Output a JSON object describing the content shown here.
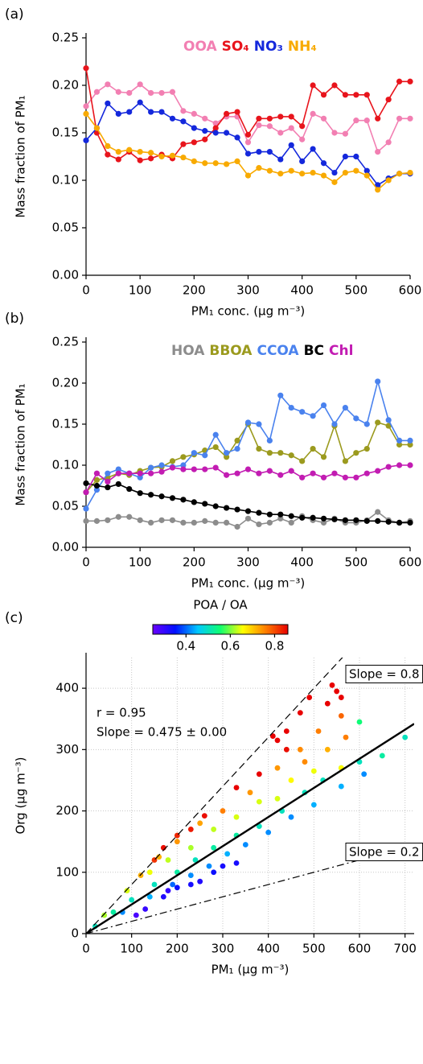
{
  "chart_data": [
    {
      "type": "line",
      "label": "(a)",
      "x_label": "PM₁ conc. (µg m⁻³)",
      "y_label": "Mass  fraction of PM₁",
      "x": [
        0,
        20,
        40,
        60,
        80,
        100,
        120,
        140,
        160,
        180,
        200,
        220,
        240,
        260,
        280,
        300,
        320,
        340,
        360,
        380,
        400,
        420,
        440,
        460,
        480,
        500,
        520,
        540,
        560,
        580,
        600
      ],
      "xlim": [
        0,
        600
      ],
      "xticks": [
        0,
        100,
        200,
        300,
        400,
        500,
        600
      ],
      "ylim": [
        0,
        0.25
      ],
      "yticks": [
        {
          "value": 0,
          "label": "0.00"
        },
        0.05,
        {
          "value": 0.1,
          "label": "0.10"
        },
        0.15,
        {
          "value": 0.2,
          "label": "0.20"
        },
        0.25
      ],
      "grid": false,
      "series": [
        {
          "name": "OOA",
          "color": "#f27fb2",
          "values": [
            0.178,
            0.193,
            0.201,
            0.193,
            0.192,
            0.201,
            0.192,
            0.192,
            0.193,
            0.173,
            0.17,
            0.165,
            0.16,
            0.167,
            0.167,
            0.14,
            0.158,
            0.157,
            0.15,
            0.155,
            0.143,
            0.17,
            0.165,
            0.15,
            0.149,
            0.163,
            0.163,
            0.13,
            0.14,
            0.165,
            0.165
          ]
        },
        {
          "name": "SO₄",
          "color": "#e8141c",
          "values": [
            0.218,
            0.15,
            0.127,
            0.122,
            0.13,
            0.121,
            0.123,
            0.127,
            0.123,
            0.138,
            0.14,
            0.143,
            0.155,
            0.17,
            0.172,
            0.148,
            0.165,
            0.165,
            0.167,
            0.167,
            0.157,
            0.2,
            0.19,
            0.2,
            0.19,
            0.19,
            0.19,
            0.165,
            0.185,
            0.204,
            0.204
          ]
        },
        {
          "name": "NO₃",
          "color": "#1428dc",
          "values": [
            0.142,
            0.155,
            0.181,
            0.17,
            0.172,
            0.182,
            0.172,
            0.172,
            0.165,
            0.162,
            0.155,
            0.152,
            0.15,
            0.15,
            0.145,
            0.128,
            0.13,
            0.13,
            0.122,
            0.137,
            0.12,
            0.133,
            0.118,
            0.108,
            0.125,
            0.125,
            0.11,
            0.095,
            0.102,
            0.107,
            0.107
          ]
        },
        {
          "name": "NH₄",
          "color": "#f8aa00",
          "values": [
            0.17,
            0.155,
            0.136,
            0.13,
            0.132,
            0.13,
            0.129,
            0.125,
            0.126,
            0.124,
            0.12,
            0.118,
            0.118,
            0.117,
            0.12,
            0.105,
            0.113,
            0.11,
            0.107,
            0.11,
            0.107,
            0.108,
            0.105,
            0.098,
            0.108,
            0.11,
            0.105,
            0.09,
            0.1,
            0.107,
            0.108
          ]
        }
      ]
    },
    {
      "type": "line",
      "label": "(b)",
      "x_label": "PM₁ conc. (µg m⁻³)",
      "y_label": "Mass  fraction of PM₁",
      "x": [
        0,
        20,
        40,
        60,
        80,
        100,
        120,
        140,
        160,
        180,
        200,
        220,
        240,
        260,
        280,
        300,
        320,
        340,
        360,
        380,
        400,
        420,
        440,
        460,
        480,
        500,
        520,
        540,
        560,
        580,
        600
      ],
      "xlim": [
        0,
        600
      ],
      "xticks": [
        0,
        100,
        200,
        300,
        400,
        500,
        600
      ],
      "ylim": [
        0,
        0.25
      ],
      "yticks": [
        {
          "value": 0,
          "label": "0.00"
        },
        0.05,
        {
          "value": 0.1,
          "label": "0.10"
        },
        0.15,
        {
          "value": 0.2,
          "label": "0.20"
        },
        0.25
      ],
      "grid": false,
      "series": [
        {
          "name": "HOA",
          "color": "#8c8c8c",
          "values": [
            0.032,
            0.032,
            0.033,
            0.037,
            0.037,
            0.033,
            0.03,
            0.033,
            0.033,
            0.03,
            0.03,
            0.032,
            0.03,
            0.03,
            0.025,
            0.035,
            0.028,
            0.03,
            0.035,
            0.03,
            0.038,
            0.033,
            0.03,
            0.035,
            0.03,
            0.03,
            0.033,
            0.043,
            0.033,
            0.03,
            0.032
          ]
        },
        {
          "name": "BBOA",
          "color": "#9b9a1e",
          "values": [
            0.067,
            0.082,
            0.085,
            0.09,
            0.088,
            0.093,
            0.097,
            0.098,
            0.105,
            0.11,
            0.113,
            0.118,
            0.122,
            0.11,
            0.13,
            0.15,
            0.12,
            0.115,
            0.115,
            0.112,
            0.105,
            0.12,
            0.11,
            0.148,
            0.105,
            0.115,
            0.12,
            0.152,
            0.148,
            0.125,
            0.125
          ]
        },
        {
          "name": "CCOA",
          "color": "#4a82ee",
          "values": [
            0.047,
            0.07,
            0.09,
            0.095,
            0.09,
            0.085,
            0.097,
            0.1,
            0.098,
            0.1,
            0.115,
            0.112,
            0.137,
            0.115,
            0.12,
            0.152,
            0.15,
            0.13,
            0.185,
            0.17,
            0.165,
            0.16,
            0.173,
            0.15,
            0.17,
            0.157,
            0.15,
            0.202,
            0.155,
            0.13,
            0.13
          ]
        },
        {
          "name": "BC",
          "color": "#000000",
          "values": [
            0.078,
            0.075,
            0.073,
            0.077,
            0.071,
            0.066,
            0.064,
            0.062,
            0.06,
            0.058,
            0.055,
            0.053,
            0.05,
            0.048,
            0.046,
            0.044,
            0.042,
            0.04,
            0.04,
            0.038,
            0.036,
            0.036,
            0.035,
            0.034,
            0.033,
            0.033,
            0.032,
            0.032,
            0.031,
            0.03,
            0.03
          ]
        },
        {
          "name": "Chl",
          "color": "#c21cb2",
          "values": [
            0.067,
            0.09,
            0.08,
            0.09,
            0.09,
            0.09,
            0.09,
            0.092,
            0.097,
            0.095,
            0.095,
            0.095,
            0.097,
            0.088,
            0.09,
            0.095,
            0.09,
            0.093,
            0.088,
            0.093,
            0.085,
            0.09,
            0.085,
            0.09,
            0.085,
            0.085,
            0.09,
            0.093,
            0.098,
            0.1,
            0.1
          ]
        }
      ]
    },
    {
      "type": "scatter",
      "label": "(c)",
      "x_label": "PM₁  (µg m⁻³)",
      "y_label": "Org (µg m⁻³)",
      "xlim": [
        0,
        720
      ],
      "xticks": [
        0,
        100,
        200,
        300,
        400,
        500,
        600,
        700
      ],
      "ylim": [
        0,
        450
      ],
      "yticks": [
        0,
        100,
        200,
        300,
        400
      ],
      "grid": true,
      "annotations": [
        "r = 0.95",
        "Slope = 0.475 ±  0.00"
      ],
      "fit_slope": 0.475,
      "reference_lines": [
        {
          "slope": 0.8,
          "label": "Slope = 0.8",
          "style": "dash"
        },
        {
          "slope": 0.2,
          "label": "Slope = 0.2",
          "style": "dashdot"
        }
      ],
      "colorbar": {
        "title": "POA / OA",
        "lim": [
          0.25,
          0.86
        ],
        "ticks": [
          0.4,
          0.6,
          0.8
        ],
        "colors": [
          "#6a00ff",
          "#0010ff",
          "#00c8ff",
          "#10ff70",
          "#ffff00",
          "#ff8000",
          "#e80000"
        ]
      },
      "x": [
        230,
        250,
        280,
        330,
        200,
        170,
        130,
        110,
        180,
        300,
        610,
        560,
        500,
        450,
        400,
        350,
        310,
        270,
        230,
        190,
        140,
        80,
        600,
        700,
        650,
        600,
        560,
        520,
        480,
        430,
        380,
        330,
        280,
        240,
        200,
        150,
        100,
        60,
        20,
        500,
        450,
        420,
        380,
        330,
        280,
        230,
        180,
        140,
        90,
        40,
        560,
        560,
        510,
        470,
        420,
        480,
        360,
        300,
        250,
        200,
        160,
        120,
        570,
        530,
        410,
        420,
        440,
        470,
        490,
        540,
        550,
        560,
        530,
        440,
        380,
        330,
        260,
        230,
        200,
        170,
        150
      ],
      "values": [
        80,
        85,
        100,
        115,
        75,
        60,
        40,
        30,
        70,
        110,
        260,
        240,
        210,
        190,
        165,
        145,
        130,
        110,
        95,
        80,
        60,
        35,
        345,
        320,
        290,
        280,
        270,
        250,
        230,
        200,
        175,
        160,
        140,
        120,
        100,
        80,
        55,
        35,
        12,
        265,
        250,
        220,
        215,
        190,
        170,
        140,
        120,
        100,
        70,
        30,
        270,
        355,
        330,
        300,
        270,
        280,
        230,
        200,
        180,
        150,
        125,
        95,
        320,
        300,
        322,
        315,
        330,
        360,
        385,
        405,
        395,
        385,
        375,
        300,
        260,
        238,
        192,
        170,
        160,
        140,
        120
      ],
      "color_values": [
        0.33,
        0.32,
        0.34,
        0.33,
        0.34,
        0.32,
        0.3,
        0.28,
        0.3,
        0.33,
        0.42,
        0.44,
        0.44,
        0.42,
        0.42,
        0.42,
        0.44,
        0.42,
        0.42,
        0.4,
        0.44,
        0.42,
        0.55,
        0.5,
        0.52,
        0.5,
        0.52,
        0.5,
        0.5,
        0.5,
        0.5,
        0.52,
        0.52,
        0.5,
        0.52,
        0.5,
        0.5,
        0.52,
        0.5,
        0.65,
        0.66,
        0.64,
        0.64,
        0.64,
        0.63,
        0.62,
        0.63,
        0.65,
        0.64,
        0.62,
        0.66,
        0.78,
        0.76,
        0.75,
        0.74,
        0.75,
        0.74,
        0.76,
        0.73,
        0.74,
        0.72,
        0.72,
        0.76,
        0.72,
        0.88,
        0.87,
        0.9,
        0.88,
        0.9,
        0.92,
        0.9,
        0.88,
        0.9,
        0.85,
        0.86,
        0.86,
        0.85,
        0.84,
        0.83,
        0.85,
        0.82
      ]
    }
  ]
}
